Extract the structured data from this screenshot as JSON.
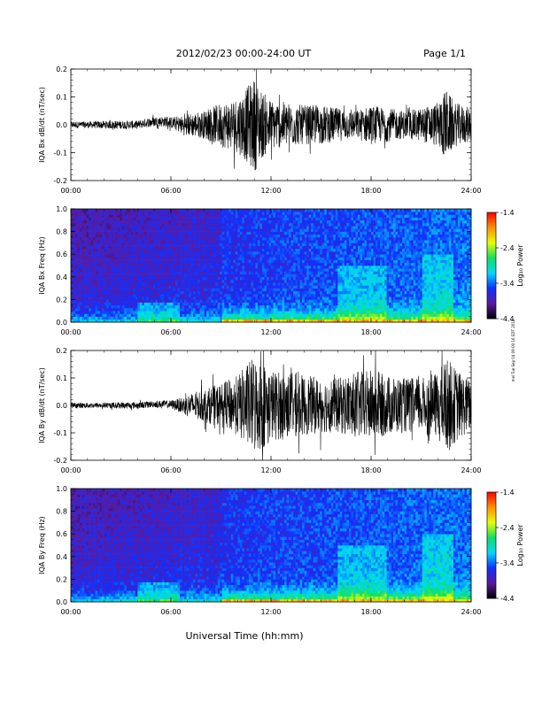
{
  "header": {
    "title": "2012/02/23  00:00-24:00 UT",
    "page": "Page 1/1",
    "side_note": "mel Tue Sep 04 09:00:16 EDT 2012"
  },
  "colorbar": {
    "label": "Log₁₀ Power",
    "ticks": [
      "-1.4",
      "-2.4",
      "-3.4",
      "-4.4"
    ],
    "range": [
      -4.4,
      -1.4
    ],
    "colors": [
      "#000000",
      "#5a1aa0",
      "#1030ff",
      "#00d8ff",
      "#10e060",
      "#e8ff00",
      "#ff9000",
      "#ff0000"
    ]
  },
  "x_axis": {
    "label": "Universal Time (hh:mm)",
    "ticks": [
      "00:00",
      "06:00",
      "12:00",
      "18:00",
      "24:00"
    ],
    "range_hours": [
      0,
      24
    ]
  },
  "chart_data": [
    {
      "type": "line",
      "ylabel": "IQA Bx dB/dt (nT/sec)",
      "ylim": [
        -0.2,
        0.2
      ],
      "yticks": [
        "0.2",
        "0.1",
        "0.0",
        "-0.1",
        "-0.2"
      ],
      "x": [
        0,
        1,
        2,
        3,
        4,
        5,
        6,
        6.5,
        7,
        8,
        9,
        10,
        10.5,
        11,
        11.5,
        12,
        13,
        14,
        15,
        16,
        17,
        18,
        19,
        20,
        21,
        22,
        22.5,
        23,
        24
      ],
      "amplitude": [
        0.012,
        0.012,
        0.014,
        0.015,
        0.015,
        0.018,
        0.02,
        0.03,
        0.04,
        0.05,
        0.08,
        0.1,
        0.13,
        0.17,
        0.12,
        0.09,
        0.08,
        0.07,
        0.07,
        0.06,
        0.05,
        0.07,
        0.06,
        0.05,
        0.06,
        0.08,
        0.13,
        0.08,
        0.06
      ]
    },
    {
      "type": "heatmap",
      "ylabel": "IQA Bx Freq (Hz)",
      "ylim": [
        0,
        1.0
      ],
      "yticks": [
        "1.0",
        "0.8",
        "0.6",
        "0.4",
        "0.2",
        "0.0"
      ]
    },
    {
      "type": "line",
      "ylabel": "IQA By dB/dt (nT/sec)",
      "ylim": [
        -0.2,
        0.2
      ],
      "yticks": [
        "0.2",
        "0.1",
        "0.0",
        "-0.1",
        "-0.2"
      ],
      "x": [
        0,
        1,
        2,
        3,
        4,
        5,
        6,
        6.5,
        7,
        8,
        9,
        10,
        10.5,
        11,
        11.5,
        12,
        13,
        14,
        15,
        16,
        17,
        18,
        19,
        20,
        21,
        22,
        22.5,
        23,
        24
      ],
      "amplitude": [
        0.01,
        0.01,
        0.01,
        0.012,
        0.012,
        0.012,
        0.015,
        0.025,
        0.04,
        0.06,
        0.08,
        0.11,
        0.15,
        0.18,
        0.16,
        0.13,
        0.12,
        0.11,
        0.1,
        0.1,
        0.12,
        0.13,
        0.11,
        0.1,
        0.1,
        0.12,
        0.18,
        0.14,
        0.09
      ]
    },
    {
      "type": "heatmap",
      "ylabel": "IQA By Freq (Hz)",
      "ylim": [
        0,
        1.0
      ],
      "yticks": [
        "1.0",
        "0.8",
        "0.6",
        "0.4",
        "0.2",
        "0.0"
      ]
    }
  ]
}
